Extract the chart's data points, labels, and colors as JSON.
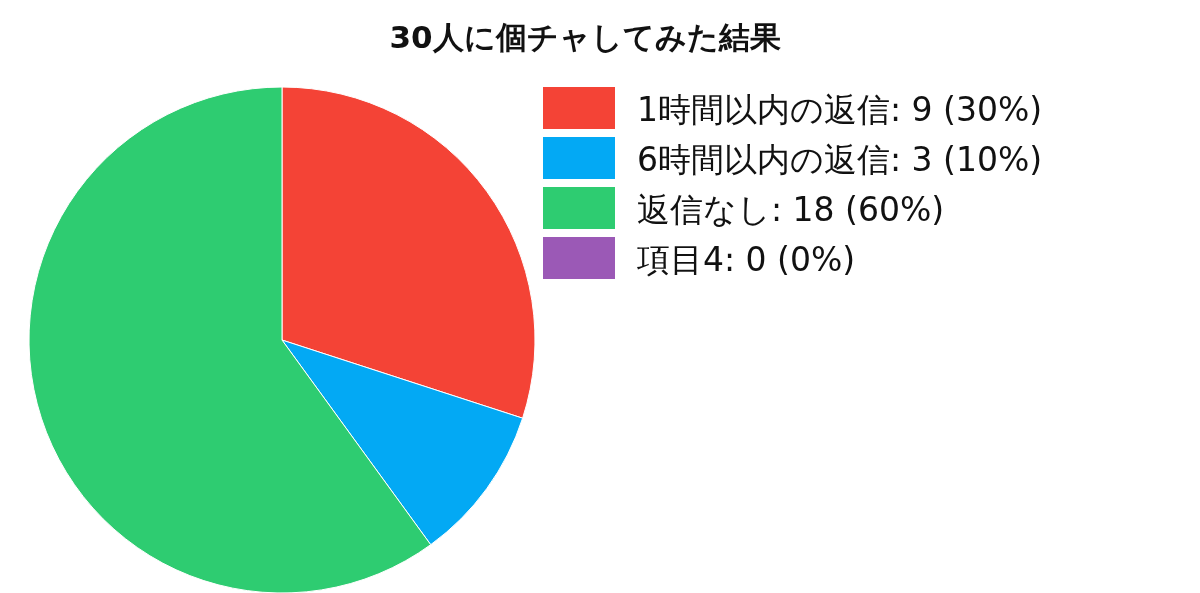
{
  "chart_data": {
    "type": "pie",
    "title": "30人に個チャしてみた結果",
    "categories": [
      "1時間以内の返信: 9 (30%)",
      "6時間以内の返信: 3 (10%)",
      "返信なし: 18 (60%)",
      "項目4: 0 (0%)"
    ],
    "values": [
      9,
      3,
      18,
      0
    ],
    "colors": [
      "#f44336",
      "#03a9f4",
      "#2ecc71",
      "#9b59b6"
    ],
    "legend": "top right"
  }
}
